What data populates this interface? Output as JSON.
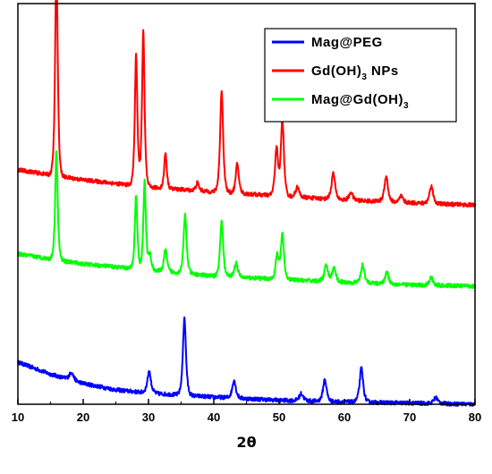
{
  "chart_data": {
    "type": "line",
    "title": "",
    "xlabel": "2θ",
    "ylabel": "",
    "xlim": [
      10,
      80
    ],
    "ylim": [
      0,
      100
    ],
    "x_ticks": [
      "10",
      "20",
      "30",
      "40",
      "50",
      "60",
      "70",
      "80"
    ],
    "legend_position": "top-right",
    "grid": false,
    "series": [
      {
        "name": "Mag@PEG",
        "name_main": "Mag@PEG",
        "name_sub": "",
        "color": "#0000ff",
        "baseline": [
          [
            10,
            10.5
          ],
          [
            15,
            7.5
          ],
          [
            20,
            5.2
          ],
          [
            25,
            3.6
          ],
          [
            30,
            2.8
          ],
          [
            40,
            1.8
          ],
          [
            50,
            1.0
          ],
          [
            60,
            0.6
          ],
          [
            70,
            0.3
          ],
          [
            80,
            0.0
          ]
        ],
        "peaks": [
          [
            18.2,
            2.0,
            0.4
          ],
          [
            30.1,
            5.5,
            0.35
          ],
          [
            35.5,
            19.5,
            0.3
          ],
          [
            43.1,
            4.5,
            0.35
          ],
          [
            53.4,
            1.8,
            0.4
          ],
          [
            57.0,
            5.5,
            0.35
          ],
          [
            62.6,
            8.5,
            0.35
          ],
          [
            74.0,
            1.5,
            0.4
          ]
        ]
      },
      {
        "name": "Gd(OH)3 NPs",
        "name_main": "Gd(OH)",
        "name_sub": "3",
        "name_tail": " NPs",
        "color": "#ff0000",
        "baseline": [
          [
            10,
            58.5
          ],
          [
            20,
            56.0
          ],
          [
            30,
            54.2
          ],
          [
            40,
            53.0
          ],
          [
            50,
            52.0
          ],
          [
            60,
            51.0
          ],
          [
            70,
            50.3
          ],
          [
            80,
            49.7
          ]
        ],
        "peaks": [
          [
            15.9,
            54.5,
            0.25
          ],
          [
            28.1,
            33.0,
            0.25
          ],
          [
            29.2,
            39.0,
            0.25
          ],
          [
            32.6,
            9.0,
            0.25
          ],
          [
            37.5,
            2.0,
            0.3
          ],
          [
            41.2,
            25.5,
            0.3
          ],
          [
            43.6,
            7.5,
            0.3
          ],
          [
            49.6,
            12.0,
            0.3
          ],
          [
            50.5,
            19.5,
            0.3
          ],
          [
            52.8,
            2.5,
            0.35
          ],
          [
            58.3,
            6.5,
            0.35
          ],
          [
            61.0,
            2.0,
            0.35
          ],
          [
            66.4,
            6.5,
            0.35
          ],
          [
            68.7,
            1.5,
            0.35
          ],
          [
            73.3,
            4.5,
            0.35
          ]
        ]
      },
      {
        "name": "Mag@Gd(OH)3",
        "name_main": "Mag@Gd(OH)",
        "name_sub": "3",
        "color": "#00ff00",
        "baseline": [
          [
            10,
            37.5
          ],
          [
            20,
            35.0
          ],
          [
            30,
            33.5
          ],
          [
            40,
            32.0
          ],
          [
            50,
            31.2
          ],
          [
            60,
            30.5
          ],
          [
            70,
            29.8
          ],
          [
            80,
            29.5
          ]
        ],
        "peaks": [
          [
            15.9,
            27.5,
            0.25
          ],
          [
            28.1,
            18.5,
            0.25
          ],
          [
            29.4,
            22.0,
            0.25
          ],
          [
            30.2,
            4.0,
            0.3
          ],
          [
            32.6,
            5.5,
            0.3
          ],
          [
            35.6,
            14.5,
            0.3
          ],
          [
            41.2,
            14.0,
            0.3
          ],
          [
            43.4,
            3.5,
            0.35
          ],
          [
            49.7,
            6.0,
            0.3
          ],
          [
            50.5,
            11.5,
            0.3
          ],
          [
            57.2,
            4.0,
            0.35
          ],
          [
            58.4,
            3.5,
            0.35
          ],
          [
            62.8,
            4.5,
            0.35
          ],
          [
            66.5,
            3.0,
            0.35
          ],
          [
            73.3,
            2.0,
            0.35
          ]
        ]
      }
    ]
  }
}
